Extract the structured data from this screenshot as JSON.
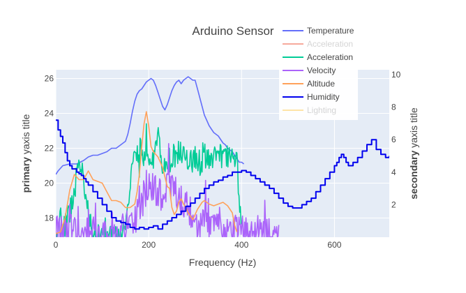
{
  "chart_data": {
    "type": "line",
    "title": "Arduino Sensor",
    "xlabel": "Frequency (Hz)",
    "ylabel_primary": {
      "bold": "primary",
      "rest": " yaxis title"
    },
    "ylabel_secondary": {
      "bold": "secondary",
      "rest": " yaxis title"
    },
    "xlim": [
      0,
      718
    ],
    "ylim_primary": [
      16.9,
      26.5
    ],
    "ylim_secondary": [
      0.0,
      10.3
    ],
    "xticks": [
      0,
      200,
      400,
      600
    ],
    "yticks_primary": [
      18,
      20,
      22,
      24,
      26
    ],
    "yticks_secondary": [
      2,
      4,
      6,
      8,
      10
    ],
    "grid": true,
    "legend_position": "top-right",
    "colors": {
      "plot_bg": "#e5ecf6",
      "grid": "#ffffff",
      "text": "#444444",
      "legend_hidden_text": "#aaaaaa"
    },
    "series": [
      {
        "name": "Temperature",
        "axis": "primary",
        "color": "#636efa",
        "visible": true,
        "kind": "curve",
        "points": [
          [
            0,
            20.5
          ],
          [
            5,
            20.7
          ],
          [
            15,
            21.0
          ],
          [
            30,
            21.1
          ],
          [
            45,
            21.1
          ],
          [
            60,
            21.3
          ],
          [
            70,
            21.5
          ],
          [
            80,
            21.6
          ],
          [
            90,
            21.6
          ],
          [
            100,
            21.7
          ],
          [
            110,
            21.8
          ],
          [
            120,
            22.0
          ],
          [
            130,
            22.0
          ],
          [
            140,
            22.2
          ],
          [
            150,
            22.4
          ],
          [
            155,
            22.8
          ],
          [
            160,
            23.4
          ],
          [
            165,
            24.1
          ],
          [
            170,
            24.7
          ],
          [
            175,
            25.1
          ],
          [
            180,
            25.3
          ],
          [
            185,
            25.4
          ],
          [
            190,
            25.6
          ],
          [
            195,
            25.8
          ],
          [
            200,
            25.9
          ],
          [
            205,
            26.0
          ],
          [
            210,
            25.9
          ],
          [
            215,
            25.6
          ],
          [
            220,
            25.2
          ],
          [
            225,
            24.8
          ],
          [
            230,
            24.4
          ],
          [
            235,
            24.2
          ],
          [
            240,
            24.5
          ],
          [
            245,
            24.9
          ],
          [
            250,
            25.3
          ],
          [
            255,
            25.6
          ],
          [
            260,
            25.8
          ],
          [
            265,
            25.9
          ],
          [
            270,
            25.7
          ],
          [
            275,
            25.9
          ],
          [
            280,
            26.0
          ],
          [
            285,
            26.1
          ],
          [
            290,
            26.0
          ],
          [
            295,
            25.9
          ],
          [
            300,
            25.9
          ],
          [
            305,
            25.4
          ],
          [
            310,
            24.9
          ],
          [
            315,
            24.4
          ],
          [
            320,
            23.9
          ],
          [
            325,
            23.6
          ],
          [
            330,
            23.3
          ],
          [
            335,
            23.1
          ],
          [
            340,
            22.9
          ],
          [
            345,
            22.8
          ],
          [
            350,
            22.7
          ],
          [
            355,
            22.5
          ],
          [
            360,
            22.3
          ],
          [
            365,
            22.2
          ],
          [
            370,
            22.0
          ],
          [
            375,
            21.9
          ],
          [
            380,
            21.8
          ],
          [
            385,
            21.6
          ],
          [
            390,
            21.4
          ],
          [
            395,
            21.2
          ],
          [
            400,
            21.2
          ],
          [
            405,
            21.1
          ]
        ]
      },
      {
        "name": "Acceleration",
        "axis": "primary",
        "color": "#EF553B",
        "visible": false,
        "kind": "curve",
        "points": []
      },
      {
        "name": "Acceleration",
        "axis": "primary",
        "color": "#00cc96",
        "visible": true,
        "kind": "noise",
        "points": [
          [
            0,
            17.0
          ],
          [
            10,
            17.9
          ],
          [
            20,
            17.5
          ],
          [
            30,
            18.3
          ],
          [
            40,
            19.5
          ],
          [
            50,
            21.5
          ],
          [
            60,
            20.3
          ],
          [
            70,
            18.2
          ],
          [
            80,
            17.4
          ],
          [
            90,
            17.0
          ],
          [
            100,
            17.0
          ],
          [
            120,
            17.0
          ],
          [
            140,
            17.0
          ],
          [
            150,
            17.6
          ],
          [
            155,
            18.2
          ],
          [
            160,
            19.8
          ],
          [
            165,
            21.7
          ],
          [
            170,
            22.1
          ],
          [
            175,
            21.5
          ],
          [
            180,
            21.0
          ],
          [
            185,
            22.4
          ],
          [
            190,
            21.2
          ],
          [
            195,
            22.0
          ],
          [
            200,
            21.7
          ],
          [
            205,
            21.0
          ],
          [
            210,
            21.5
          ],
          [
            215,
            21.9
          ],
          [
            220,
            22.8
          ],
          [
            225,
            21.5
          ],
          [
            230,
            21.2
          ],
          [
            240,
            21.4
          ],
          [
            250,
            21.2
          ],
          [
            260,
            21.6
          ],
          [
            270,
            21.9
          ],
          [
            280,
            21.6
          ],
          [
            290,
            21.2
          ],
          [
            300,
            21.5
          ],
          [
            310,
            21.0
          ],
          [
            320,
            21.6
          ],
          [
            330,
            21.2
          ],
          [
            340,
            21.5
          ],
          [
            350,
            21.8
          ],
          [
            360,
            21.4
          ],
          [
            370,
            21.6
          ],
          [
            380,
            21.7
          ],
          [
            385,
            21.4
          ],
          [
            390,
            21.3
          ],
          [
            395,
            18.9
          ],
          [
            400,
            17.2
          ]
        ],
        "noise": 0.7
      },
      {
        "name": "Velocity",
        "axis": "primary",
        "color": "#ab63fa",
        "visible": true,
        "kind": "noise",
        "points": [
          [
            0,
            17.1
          ],
          [
            20,
            17.3
          ],
          [
            40,
            17.2
          ],
          [
            60,
            17.1
          ],
          [
            80,
            17.1
          ],
          [
            100,
            17.0
          ],
          [
            120,
            17.1
          ],
          [
            140,
            17.2
          ],
          [
            160,
            17.6
          ],
          [
            170,
            17.9
          ],
          [
            180,
            18.5
          ],
          [
            190,
            19.3
          ],
          [
            200,
            19.9
          ],
          [
            210,
            19.7
          ],
          [
            220,
            19.2
          ],
          [
            230,
            19.4
          ],
          [
            240,
            19.7
          ],
          [
            250,
            19.5
          ],
          [
            260,
            19.3
          ],
          [
            270,
            19.0
          ],
          [
            280,
            18.6
          ],
          [
            290,
            18.2
          ],
          [
            300,
            17.9
          ],
          [
            310,
            17.7
          ],
          [
            320,
            17.5
          ],
          [
            340,
            17.4
          ],
          [
            360,
            17.3
          ],
          [
            380,
            17.3
          ],
          [
            400,
            17.2
          ],
          [
            480,
            17.1
          ]
        ],
        "noise": 1.0
      },
      {
        "name": "Altitude",
        "axis": "primary",
        "color": "#FFA15A",
        "visible": true,
        "kind": "curve",
        "points": [
          [
            0,
            17.1
          ],
          [
            10,
            17.2
          ],
          [
            20,
            18.0
          ],
          [
            30,
            19.6
          ],
          [
            40,
            20.5
          ],
          [
            50,
            20.2
          ],
          [
            60,
            20.2
          ],
          [
            70,
            20.7
          ],
          [
            80,
            20.2
          ],
          [
            90,
            20.1
          ],
          [
            100,
            20.0
          ],
          [
            110,
            19.5
          ],
          [
            120,
            19.0
          ],
          [
            130,
            19.0
          ],
          [
            140,
            18.9
          ],
          [
            150,
            18.6
          ],
          [
            160,
            18.6
          ],
          [
            170,
            18.8
          ],
          [
            175,
            19.5
          ],
          [
            180,
            20.5
          ],
          [
            185,
            22.1
          ],
          [
            190,
            23.4
          ],
          [
            195,
            24.1
          ],
          [
            200,
            23.3
          ],
          [
            205,
            22.1
          ],
          [
            210,
            21.8
          ],
          [
            220,
            21.5
          ],
          [
            230,
            20.9
          ],
          [
            240,
            19.8
          ],
          [
            245,
            19.7
          ],
          [
            250,
            18.6
          ],
          [
            255,
            18.2
          ],
          [
            260,
            18.4
          ],
          [
            265,
            18.9
          ],
          [
            270,
            19.1
          ],
          [
            275,
            18.8
          ],
          [
            280,
            18.6
          ],
          [
            285,
            18.3
          ],
          [
            290,
            18.1
          ],
          [
            295,
            17.9
          ],
          [
            300,
            18.2
          ],
          [
            305,
            18.5
          ],
          [
            310,
            18.7
          ],
          [
            315,
            18.9
          ],
          [
            320,
            19.0
          ],
          [
            330,
            18.8
          ],
          [
            340,
            18.7
          ],
          [
            350,
            18.8
          ],
          [
            360,
            18.9
          ],
          [
            370,
            18.7
          ],
          [
            380,
            18.3
          ],
          [
            385,
            17.6
          ],
          [
            390,
            17.2
          ]
        ]
      },
      {
        "name": "Humidity",
        "axis": "secondary",
        "color": "#0000ee",
        "visible": true,
        "kind": "step",
        "points": [
          [
            0,
            7.2
          ],
          [
            5,
            6.6
          ],
          [
            10,
            6.2
          ],
          [
            15,
            5.8
          ],
          [
            20,
            5.2
          ],
          [
            25,
            4.7
          ],
          [
            30,
            4.4
          ],
          [
            35,
            4.2
          ],
          [
            40,
            4.2
          ],
          [
            45,
            4.0
          ],
          [
            50,
            3.9
          ],
          [
            55,
            3.8
          ],
          [
            60,
            3.6
          ],
          [
            65,
            3.4
          ],
          [
            70,
            3.2
          ],
          [
            80,
            2.8
          ],
          [
            90,
            2.4
          ],
          [
            100,
            2.0
          ],
          [
            110,
            1.6
          ],
          [
            120,
            1.2
          ],
          [
            130,
            1.0
          ],
          [
            140,
            0.9
          ],
          [
            150,
            0.8
          ],
          [
            160,
            0.6
          ],
          [
            170,
            0.5
          ],
          [
            180,
            0.6
          ],
          [
            190,
            0.5
          ],
          [
            200,
            0.6
          ],
          [
            210,
            0.7
          ],
          [
            220,
            0.5
          ],
          [
            230,
            0.8
          ],
          [
            240,
            1.0
          ],
          [
            250,
            1.2
          ],
          [
            260,
            1.4
          ],
          [
            270,
            1.6
          ],
          [
            280,
            1.9
          ],
          [
            290,
            2.1
          ],
          [
            300,
            2.4
          ],
          [
            310,
            2.7
          ],
          [
            320,
            3.0
          ],
          [
            330,
            3.2
          ],
          [
            340,
            3.4
          ],
          [
            350,
            3.5
          ],
          [
            360,
            3.7
          ],
          [
            370,
            3.8
          ],
          [
            380,
            4.0
          ],
          [
            390,
            4.0
          ],
          [
            400,
            4.1
          ],
          [
            410,
            4.0
          ],
          [
            420,
            3.8
          ],
          [
            430,
            3.6
          ],
          [
            440,
            3.4
          ],
          [
            450,
            3.2
          ],
          [
            460,
            3.0
          ],
          [
            470,
            2.7
          ],
          [
            480,
            2.4
          ],
          [
            490,
            2.1
          ],
          [
            500,
            1.9
          ],
          [
            510,
            1.8
          ],
          [
            520,
            1.8
          ],
          [
            530,
            2.0
          ],
          [
            540,
            2.2
          ],
          [
            550,
            2.4
          ],
          [
            560,
            2.8
          ],
          [
            570,
            3.2
          ],
          [
            580,
            3.6
          ],
          [
            590,
            4.0
          ],
          [
            600,
            4.4
          ],
          [
            605,
            4.6
          ],
          [
            610,
            4.9
          ],
          [
            615,
            5.1
          ],
          [
            620,
            4.9
          ],
          [
            625,
            4.6
          ],
          [
            630,
            4.4
          ],
          [
            640,
            4.6
          ],
          [
            650,
            4.9
          ],
          [
            660,
            5.3
          ],
          [
            670,
            5.7
          ],
          [
            680,
            6.0
          ],
          [
            690,
            5.4
          ],
          [
            700,
            5.1
          ],
          [
            710,
            4.9
          ],
          [
            718,
            5.0
          ]
        ]
      },
      {
        "name": "Lighting",
        "axis": "secondary",
        "color": "#FECB52",
        "visible": false,
        "kind": "curve",
        "points": []
      }
    ]
  }
}
